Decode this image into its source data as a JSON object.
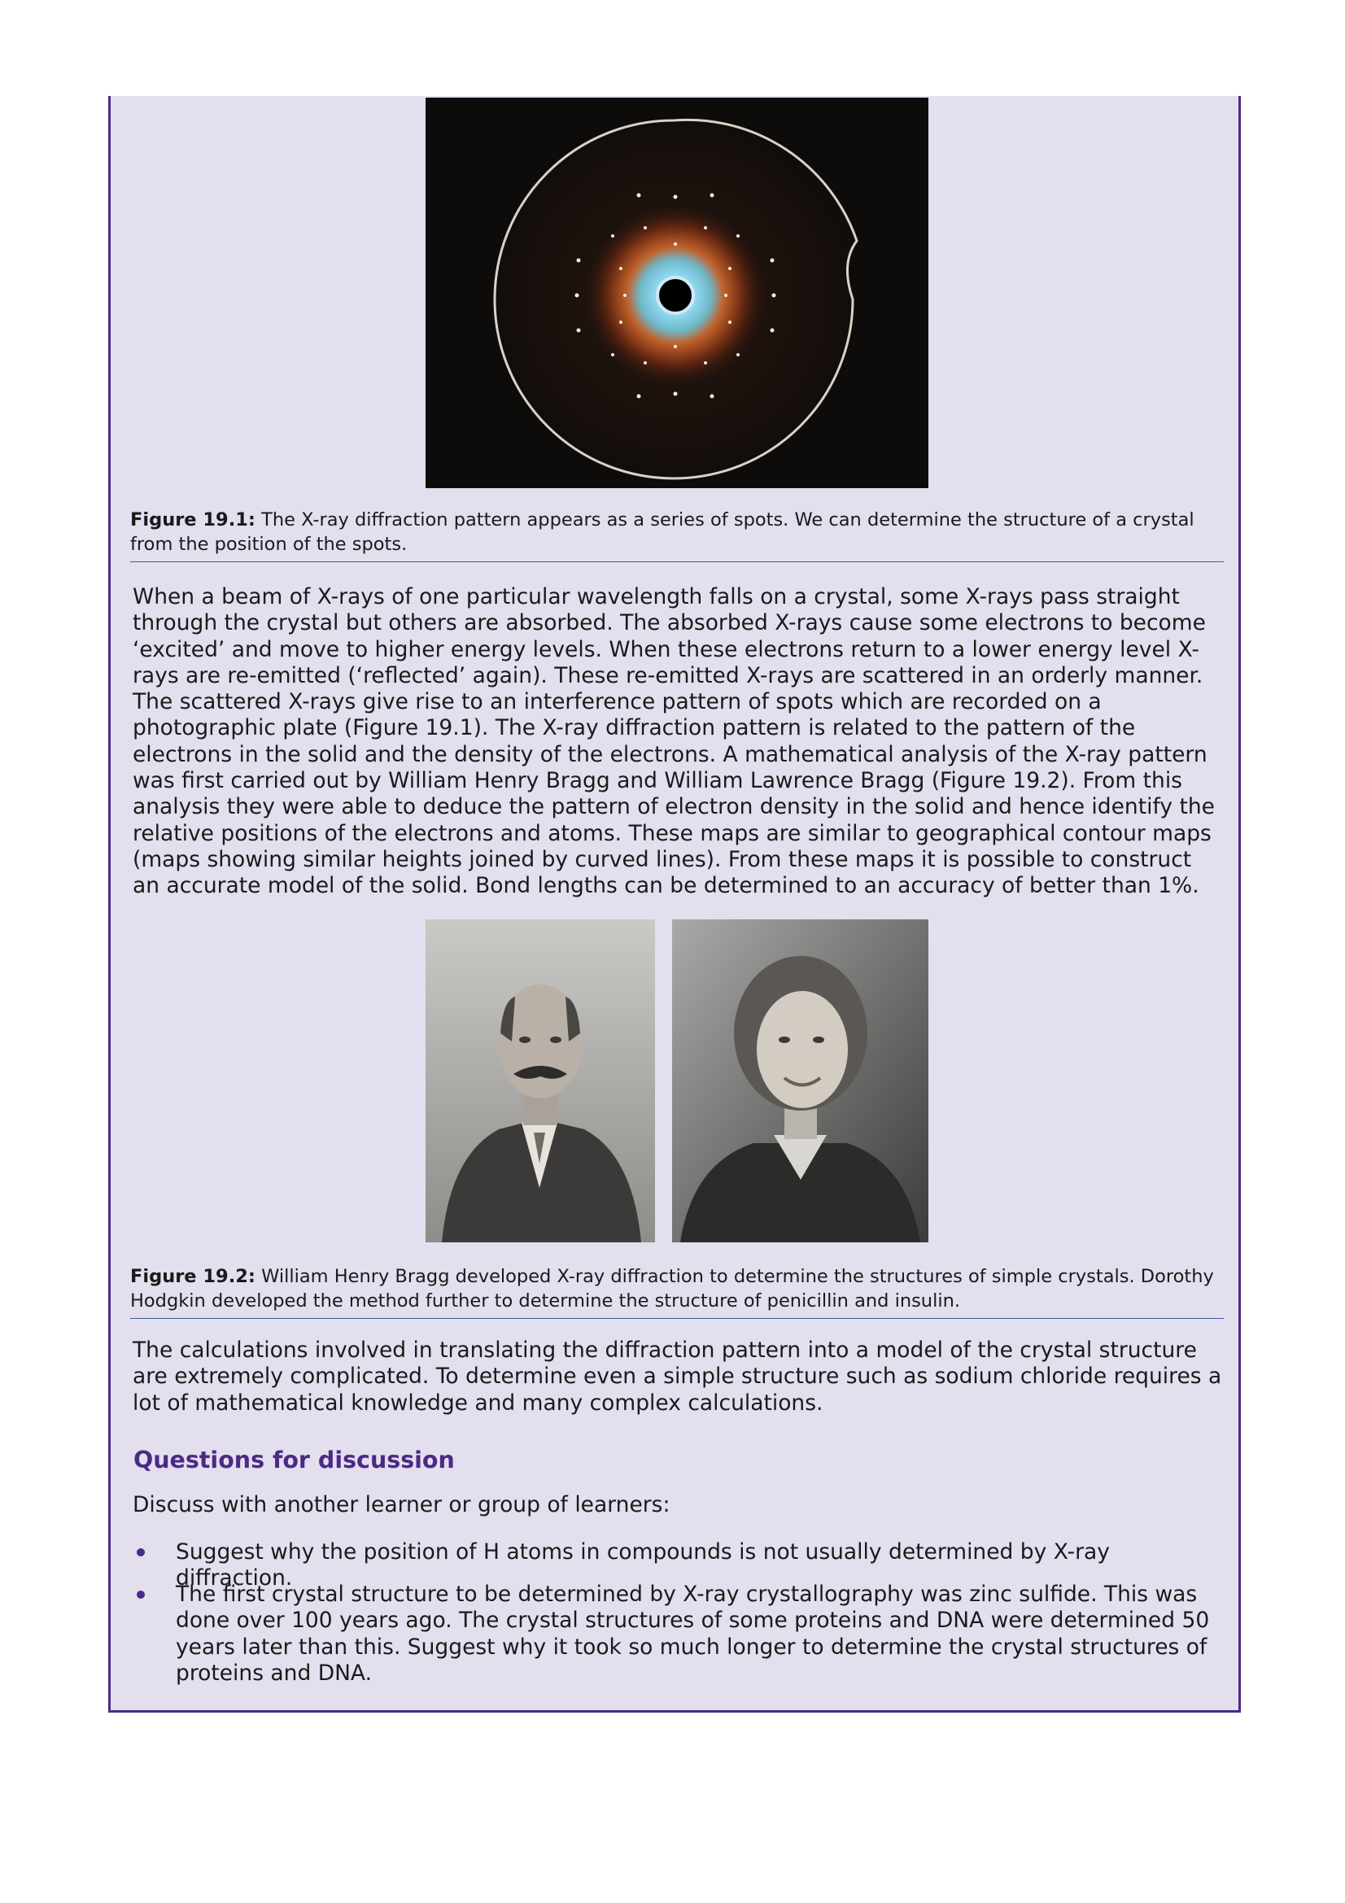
{
  "figure1": {
    "label": "Figure 19.1:",
    "caption": "The X-ray diffraction pattern appears as a series of spots. We can determine the structure of a crystal from the position of the spots.",
    "image_description_icon": "xray-diffraction-pattern"
  },
  "paragraph1": "When a beam of X-rays of one particular wavelength falls on a crystal, some X-rays pass straight through the crystal but others are absorbed. The absorbed X-rays cause some electrons to become ‘excited’ and move to higher energy levels. When these electrons return to a lower energy level X-rays are re-emitted (‘reflected’ again). These re-emitted X-rays are scattered in an orderly manner. The scattered X-rays give rise to an interference pattern of spots which are recorded on a photographic plate (Figure 19.1). The X-ray diffraction pattern is related to the pattern of the electrons in the solid and the density of the electrons. A mathematical analysis of the X-ray pattern was first carried out by William Henry Bragg and William Lawrence Bragg (Figure 19.2). From this analysis they were able to deduce the pattern of electron density in the solid and hence identify the relative positions of the electrons and atoms. These maps are similar to geographical contour maps (maps showing similar heights joined by curved lines). From these maps it is possible to construct an accurate model of the solid. Bond lengths can be determined to an accuracy of better than 1%.",
  "figure2": {
    "label": "Figure 19.2:",
    "caption": "William Henry Bragg developed X-ray diffraction to determine the structures of simple crystals. Dorothy Hodgkin developed the method further to determine the structure of penicillin and insulin."
  },
  "paragraph2": "The calculations involved in translating the diffraction pattern into a model of the crystal structure are extremely complicated. To determine even a simple structure such as sodium chloride requires a lot of mathematical knowledge and many complex calculations.",
  "questions": {
    "heading": "Questions for discussion",
    "intro": "Discuss with another learner or group of learners:",
    "items": [
      "Suggest why the position of H atoms in compounds is not usually determined by X-ray diffraction.",
      "The first crystal structure to be determined by X-ray crystallography was zinc sulfide. This was done over 100 years ago. The crystal structures of some proteins and DNA were determined 50 years later than this. Suggest why it took so much longer to determine the crystal structures of proteins and DNA."
    ]
  },
  "colors": {
    "panel_background": "#e3dfee",
    "accent": "#4b2a86",
    "rule": "#3b5ea6"
  }
}
